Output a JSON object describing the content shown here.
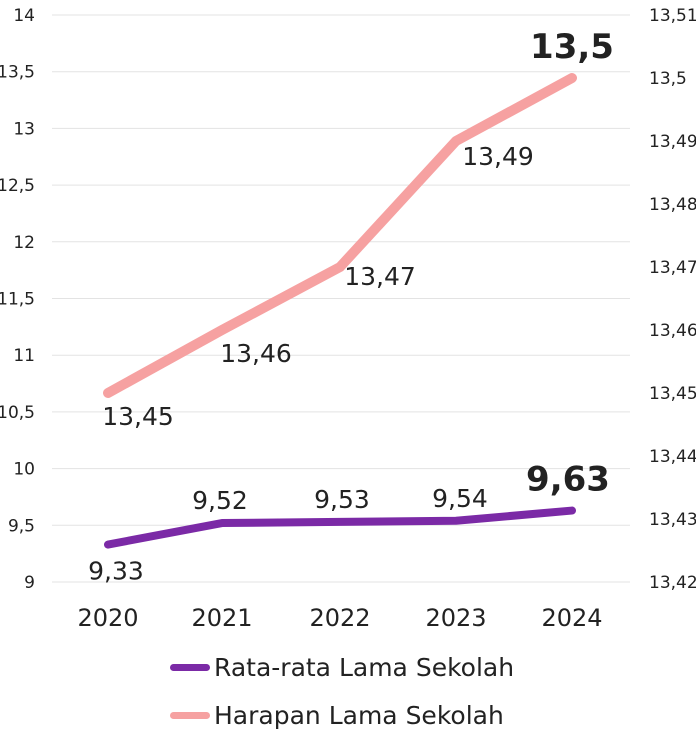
{
  "chart_data": {
    "type": "line",
    "categories": [
      "2020",
      "2021",
      "2022",
      "2023",
      "2024"
    ],
    "y_left": {
      "ticks": [
        "14",
        "13,5",
        "13",
        "12,5",
        "12",
        "11,5",
        "11",
        "10,5",
        "10",
        "9,5",
        "9"
      ],
      "lim": [
        9,
        14
      ]
    },
    "y_right": {
      "ticks": [
        "13,51",
        "13,5",
        "13,49",
        "13,48",
        "13,47",
        "13,46",
        "13,45",
        "13,44",
        "13,43",
        "13,42"
      ],
      "lim": [
        13.42,
        13.51
      ]
    },
    "grid": true,
    "series": [
      {
        "name": "Rata-rata Lama Sekolah",
        "axis": "left",
        "color": "#7b2aa6",
        "values": [
          9.33,
          9.52,
          9.53,
          9.54,
          9.63
        ],
        "labels": [
          "9,33",
          "9,52",
          "9,53",
          "9,54",
          "9,63"
        ]
      },
      {
        "name": "Harapan Lama Sekolah",
        "axis": "right",
        "color": "#f6a1a1",
        "values": [
          13.45,
          13.46,
          13.47,
          13.49,
          13.5
        ],
        "labels": [
          "13,45",
          "13,46",
          "13,47",
          "13,49",
          "13,5"
        ]
      }
    ]
  }
}
